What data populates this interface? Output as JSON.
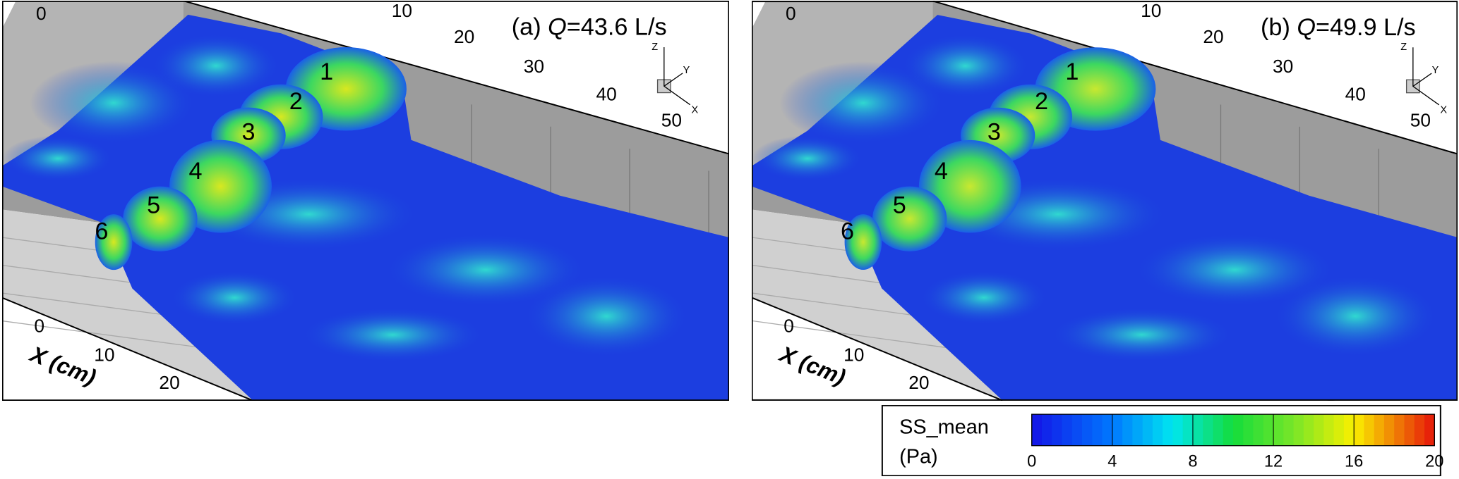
{
  "panels": [
    {
      "label_prefix": "(a) ",
      "q_symbol": "Q",
      "q_text": "=43.6 L/s",
      "top_ticks": [
        0,
        10,
        20,
        30,
        40,
        50
      ],
      "side_ticks": [
        0,
        10,
        20
      ],
      "x_axis_label": "X (cm)",
      "boulders": [
        "1",
        "2",
        "3",
        "4",
        "5",
        "6"
      ],
      "triad": [
        "Z",
        "Y",
        "X"
      ]
    },
    {
      "label_prefix": "(b) ",
      "q_symbol": "Q",
      "q_text": "=49.9 L/s",
      "top_ticks": [
        0,
        10,
        20,
        30,
        40,
        50
      ],
      "side_ticks": [
        0,
        10,
        20
      ],
      "x_axis_label": "X (cm)",
      "boulders": [
        "1",
        "2",
        "3",
        "4",
        "5",
        "6"
      ],
      "triad": [
        "Z",
        "Y",
        "X"
      ]
    }
  ],
  "colorbar": {
    "title": "SS_mean",
    "unit": "(Pa)",
    "range": [
      0,
      20
    ],
    "ticks": [
      0,
      4,
      8,
      12,
      16,
      20
    ]
  }
}
